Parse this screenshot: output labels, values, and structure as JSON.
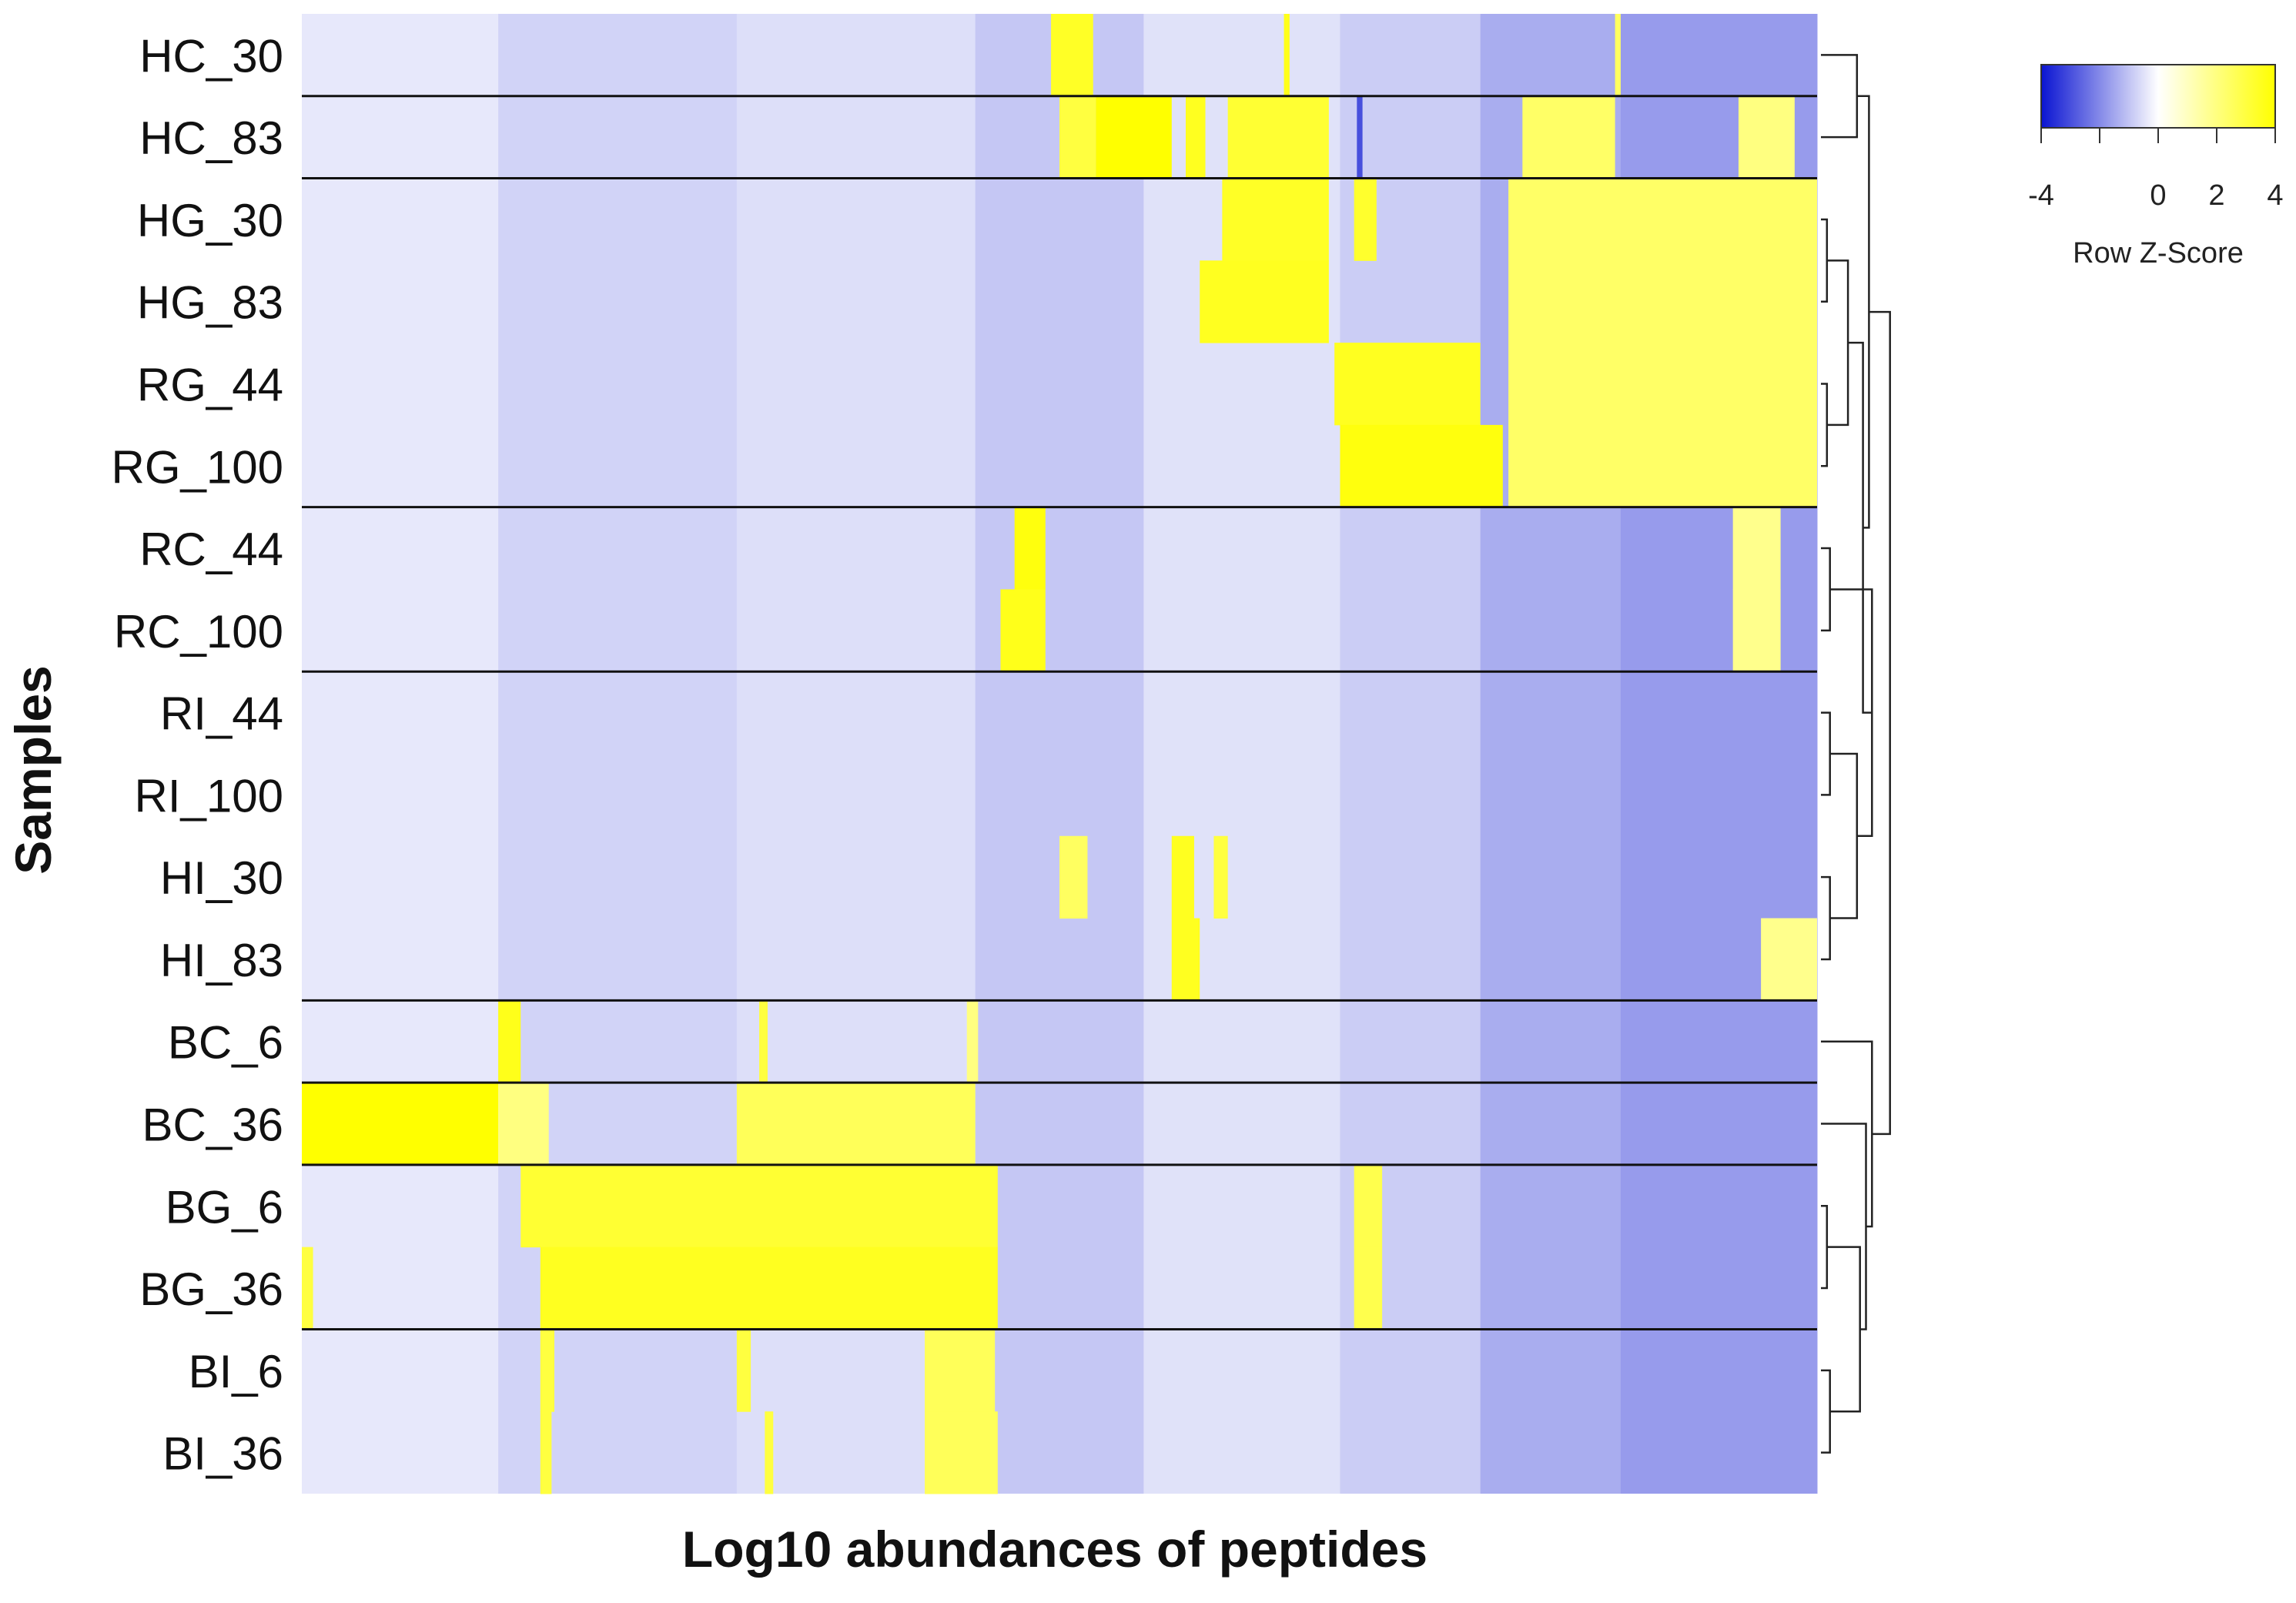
{
  "chart_data": {
    "type": "heatmap",
    "xlabel": "Log10 abundances of peptides",
    "ylabel": "Samples",
    "rows": [
      "HC_30",
      "HC_83",
      "HG_30",
      "HG_83",
      "RG_44",
      "RG_100",
      "RC_44",
      "RC_100",
      "RI_44",
      "RI_100",
      "HI_30",
      "HI_83",
      "BC_6",
      "BC_36",
      "BG_6",
      "BG_36",
      "BI_6",
      "BI_36"
    ],
    "group_separators_after_row": [
      0,
      1,
      5,
      7,
      11,
      12,
      13,
      15
    ],
    "legend": {
      "title": "Row Z-Score",
      "ticks": [
        "-4",
        "0",
        "2",
        "4"
      ],
      "range": [
        -4,
        4
      ],
      "colors": {
        "low": "#0a14d2",
        "mid": "#ffffff",
        "high": "#ffff00"
      }
    },
    "column_count": 540,
    "note": "Values are Row Z-Scores; baseline columns are faintly negative (light lavender), yellow blocks mark high-abundance peptide clusters. Block ranges use column-index units 0-540.",
    "background_profile": [
      {
        "cols": [
          0,
          70
        ],
        "z": -0.4
      },
      {
        "cols": [
          70,
          155
        ],
        "z": -0.75
      },
      {
        "cols": [
          155,
          240
        ],
        "z": -0.55
      },
      {
        "cols": [
          240,
          300
        ],
        "z": -0.95
      },
      {
        "cols": [
          300,
          370
        ],
        "z": -0.5
      },
      {
        "cols": [
          370,
          420
        ],
        "z": -0.85
      },
      {
        "cols": [
          420,
          470
        ],
        "z": -1.4
      },
      {
        "cols": [
          470,
          540
        ],
        "z": -1.7
      }
    ],
    "blocks": [
      {
        "row": 0,
        "cols": [
          267,
          282
        ],
        "z": 3.4
      },
      {
        "row": 0,
        "cols": [
          350,
          352
        ],
        "z": 3.6
      },
      {
        "row": 0,
        "cols": [
          468,
          470
        ],
        "z": 2.5
      },
      {
        "row": 1,
        "cols": [
          270,
          283
        ],
        "z": 3.0
      },
      {
        "row": 1,
        "cols": [
          283,
          310
        ],
        "z": 4.0
      },
      {
        "row": 1,
        "cols": [
          315,
          322
        ],
        "z": 3.5
      },
      {
        "row": 1,
        "cols": [
          330,
          366
        ],
        "z": 3.2
      },
      {
        "row": 1,
        "cols": [
          435,
          468
        ],
        "z": 2.4
      },
      {
        "row": 1,
        "cols": [
          512,
          532
        ],
        "z": 2.0
      },
      {
        "row": 1,
        "cols": [
          376,
          378
        ],
        "z": -3.0
      },
      {
        "row": 2,
        "cols": [
          328,
          366
        ],
        "z": 3.4
      },
      {
        "row": 2,
        "cols": [
          375,
          383
        ],
        "z": 3.3
      },
      {
        "row": 2,
        "cols": [
          430,
          540
        ],
        "z": 2.4
      },
      {
        "row": 3,
        "cols": [
          320,
          366
        ],
        "z": 3.5
      },
      {
        "row": 3,
        "cols": [
          430,
          540
        ],
        "z": 2.4
      },
      {
        "row": 4,
        "cols": [
          368,
          420
        ],
        "z": 3.5
      },
      {
        "row": 4,
        "cols": [
          430,
          540
        ],
        "z": 2.4
      },
      {
        "row": 5,
        "cols": [
          370,
          428
        ],
        "z": 3.8
      },
      {
        "row": 5,
        "cols": [
          430,
          540
        ],
        "z": 2.4
      },
      {
        "row": 6,
        "cols": [
          254,
          265
        ],
        "z": 3.8
      },
      {
        "row": 6,
        "cols": [
          510,
          527
        ],
        "z": 1.8
      },
      {
        "row": 7,
        "cols": [
          249,
          265
        ],
        "z": 3.6
      },
      {
        "row": 7,
        "cols": [
          510,
          527
        ],
        "z": 1.8
      },
      {
        "row": 10,
        "cols": [
          310,
          318
        ],
        "z": 3.5
      },
      {
        "row": 10,
        "cols": [
          325,
          330
        ],
        "z": 3.0
      },
      {
        "row": 10,
        "cols": [
          270,
          280
        ],
        "z": 2.5
      },
      {
        "row": 11,
        "cols": [
          310,
          320
        ],
        "z": 3.5
      },
      {
        "row": 11,
        "cols": [
          520,
          540
        ],
        "z": 1.8
      },
      {
        "row": 12,
        "cols": [
          70,
          78
        ],
        "z": 3.6
      },
      {
        "row": 12,
        "cols": [
          163,
          166
        ],
        "z": 3.0
      },
      {
        "row": 12,
        "cols": [
          237,
          241
        ],
        "z": 2.0
      },
      {
        "row": 13,
        "cols": [
          0,
          70
        ],
        "z": 4.0
      },
      {
        "row": 13,
        "cols": [
          155,
          240
        ],
        "z": 2.6
      },
      {
        "row": 13,
        "cols": [
          70,
          88
        ],
        "z": 2.0
      },
      {
        "row": 14,
        "cols": [
          78,
          248
        ],
        "z": 3.2
      },
      {
        "row": 14,
        "cols": [
          375,
          385
        ],
        "z": 2.8
      },
      {
        "row": 15,
        "cols": [
          0,
          4
        ],
        "z": 3.0
      },
      {
        "row": 15,
        "cols": [
          85,
          248
        ],
        "z": 3.5
      },
      {
        "row": 15,
        "cols": [
          375,
          385
        ],
        "z": 2.8
      },
      {
        "row": 16,
        "cols": [
          85,
          90
        ],
        "z": 3.0
      },
      {
        "row": 16,
        "cols": [
          155,
          160
        ],
        "z": 3.0
      },
      {
        "row": 16,
        "cols": [
          222,
          247
        ],
        "z": 2.6
      },
      {
        "row": 17,
        "cols": [
          85,
          89
        ],
        "z": 3.0
      },
      {
        "row": 17,
        "cols": [
          165,
          168
        ],
        "z": 3.0
      },
      {
        "row": 17,
        "cols": [
          222,
          248
        ],
        "z": 2.6
      }
    ]
  }
}
